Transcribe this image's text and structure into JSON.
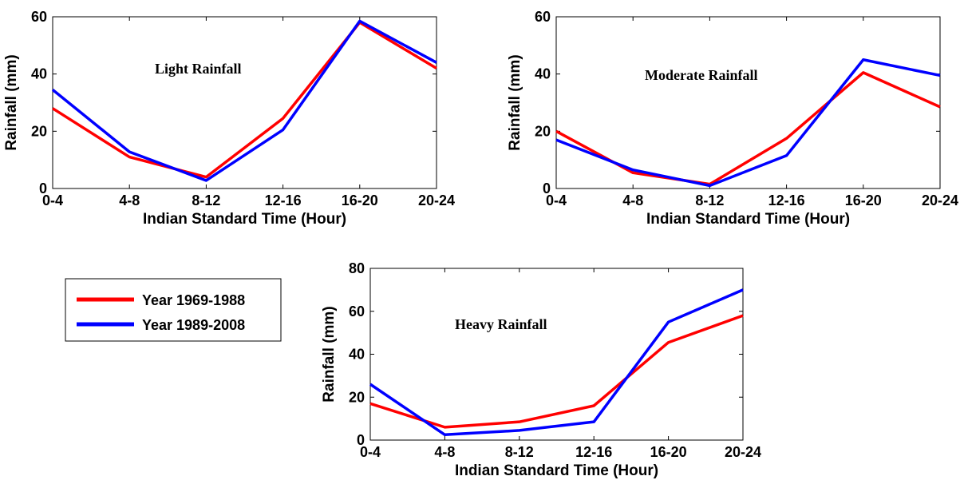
{
  "chart_data": [
    {
      "type": "line",
      "title": "Light Rainfall",
      "xlabel": "Indian Standard Time (Hour)",
      "ylabel": "Rainfall (mm)",
      "categories": [
        "0-4",
        "4-8",
        "8-12",
        "12-16",
        "16-20",
        "20-24"
      ],
      "ylim": [
        0,
        60
      ],
      "yticks": [
        0,
        20,
        40,
        60
      ],
      "series": [
        {
          "name": "Year 1969-1988",
          "color": "#ff0000",
          "values": [
            28,
            11,
            4,
            24.5,
            58,
            42
          ]
        },
        {
          "name": "Year 1989-2008",
          "color": "#0000ff",
          "values": [
            34.5,
            12.8,
            2.8,
            20.5,
            58.5,
            44
          ]
        }
      ]
    },
    {
      "type": "line",
      "title": "Moderate Rainfall",
      "xlabel": "Indian Standard Time (Hour)",
      "ylabel": "Rainfall (mm)",
      "categories": [
        "0-4",
        "4-8",
        "8-12",
        "12-16",
        "16-20",
        "20-24"
      ],
      "ylim": [
        0,
        60
      ],
      "yticks": [
        0,
        20,
        40,
        60
      ],
      "series": [
        {
          "name": "Year 1969-1988",
          "color": "#ff0000",
          "values": [
            20,
            5.5,
            1.5,
            17.5,
            40.5,
            28.5
          ]
        },
        {
          "name": "Year 1989-2008",
          "color": "#0000ff",
          "values": [
            17,
            6.5,
            1,
            11.5,
            45,
            39.5
          ]
        }
      ]
    },
    {
      "type": "line",
      "title": "Heavy Rainfall",
      "xlabel": "Indian Standard Time (Hour)",
      "ylabel": "Rainfall (mm)",
      "categories": [
        "0-4",
        "4-8",
        "8-12",
        "12-16",
        "16-20",
        "20-24"
      ],
      "ylim": [
        0,
        80
      ],
      "yticks": [
        0,
        20,
        40,
        60,
        80
      ],
      "series": [
        {
          "name": "Year 1969-1988",
          "color": "#ff0000",
          "values": [
            17,
            6,
            8.5,
            16,
            45.5,
            58
          ]
        },
        {
          "name": "Year 1989-2008",
          "color": "#0000ff",
          "values": [
            26,
            2.5,
            4.5,
            8.5,
            55,
            70
          ]
        }
      ]
    }
  ],
  "legend": {
    "items": [
      {
        "label": "Year 1969-1988",
        "color": "#ff0000"
      },
      {
        "label": "Year 1989-2008",
        "color": "#0000ff"
      }
    ]
  }
}
